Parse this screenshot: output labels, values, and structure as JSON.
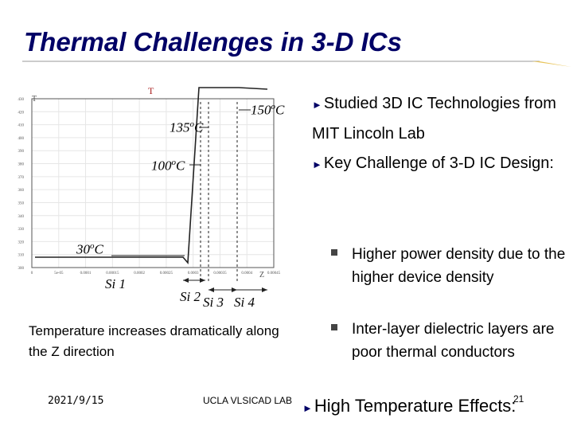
{
  "slide": {
    "title": "Thermal Challenges in 3-D ICs"
  },
  "chart": {
    "y_axis_letter": "T",
    "top_marker_letter": "T",
    "z_axis_letter": "Z",
    "y_ticks": [
      "430",
      "420",
      "410",
      "400",
      "390",
      "380",
      "370",
      "360",
      "350",
      "340",
      "330",
      "320",
      "310",
      "300"
    ],
    "x_ticks": [
      "0",
      "5e-05",
      "0.0001",
      "0.00015",
      "0.0002",
      "0.00025",
      "0.0003",
      "0.00035",
      "0.0004",
      "0.00045"
    ],
    "colors": {
      "curve": "#222222",
      "grid": "#e6e6e6",
      "frame": "#555555",
      "title": "#000066",
      "accent_rule": "#e8c45a"
    }
  },
  "annotations": {
    "t150": "150",
    "t135": "135",
    "t100": "100",
    "t30": "30",
    "degree_unit": "o",
    "celsius": "C",
    "si1": "Si 1",
    "si2": "Si 2",
    "si3": "Si 3",
    "si4": "Si 4"
  },
  "caption": "Temperature increases dramatically along the Z direction",
  "bullets": {
    "b1": "Studied 3D IC Technologies from MIT Lincoln Lab",
    "b2": "Key Challenge of 3-D IC Design:",
    "sub1": "Higher power density due to the higher device density",
    "sub2": "Inter-layer dielectric layers are poor thermal conductors",
    "b3": "High Temperature Effects:"
  },
  "footer": {
    "date": "2021/9/15",
    "lab": "UCLA VLSICAD LAB",
    "page": "21"
  }
}
